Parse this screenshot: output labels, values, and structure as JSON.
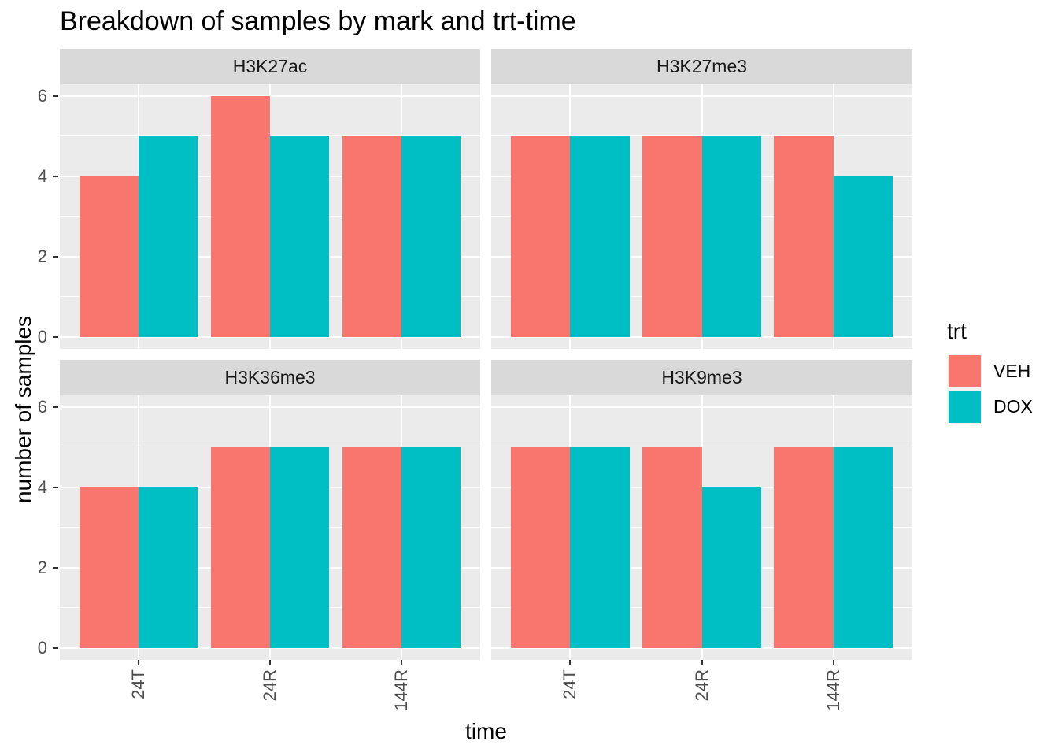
{
  "title": "Breakdown of samples by mark and trt-time",
  "axes": {
    "x_title": "time",
    "y_title": "number of samples"
  },
  "legend": {
    "title": "trt",
    "items": [
      {
        "label": "VEH",
        "color": "#F8766D"
      },
      {
        "label": "DOX",
        "color": "#00BFC4"
      }
    ]
  },
  "colors": {
    "panel_bg": "#EBEBEB",
    "strip_bg": "#D9D9D9",
    "grid": "#FFFFFF",
    "axis_text": "#4D4D4D",
    "tick_mark": "#333333",
    "legend_key_bg": "#F2F2F2",
    "veh": "#F8766D",
    "dox": "#00BFC4"
  },
  "chart_data": {
    "type": "bar",
    "title": "Breakdown of samples by mark and trt-time",
    "xlabel": "time",
    "ylabel": "number of samples",
    "categories": [
      "24T",
      "24R",
      "144R"
    ],
    "y_ticks": [
      0,
      2,
      4,
      6
    ],
    "ylim": [
      0,
      6.3
    ],
    "grid": true,
    "legend_title": "trt",
    "legend_position": "right",
    "bar_mode": "dodge",
    "facet_layout": [
      [
        "H3K27ac",
        "H3K27me3"
      ],
      [
        "H3K36me3",
        "H3K9me3"
      ]
    ],
    "facets": [
      {
        "name": "H3K27ac",
        "series": [
          {
            "name": "VEH",
            "values": [
              4,
              6,
              5
            ]
          },
          {
            "name": "DOX",
            "values": [
              5,
              5,
              5
            ]
          }
        ]
      },
      {
        "name": "H3K27me3",
        "series": [
          {
            "name": "VEH",
            "values": [
              5,
              5,
              5
            ]
          },
          {
            "name": "DOX",
            "values": [
              5,
              5,
              4
            ]
          }
        ]
      },
      {
        "name": "H3K36me3",
        "series": [
          {
            "name": "VEH",
            "values": [
              4,
              5,
              5
            ]
          },
          {
            "name": "DOX",
            "values": [
              4,
              5,
              5
            ]
          }
        ]
      },
      {
        "name": "H3K9me3",
        "series": [
          {
            "name": "VEH",
            "values": [
              5,
              5,
              5
            ]
          },
          {
            "name": "DOX",
            "values": [
              5,
              4,
              5
            ]
          }
        ]
      }
    ]
  }
}
